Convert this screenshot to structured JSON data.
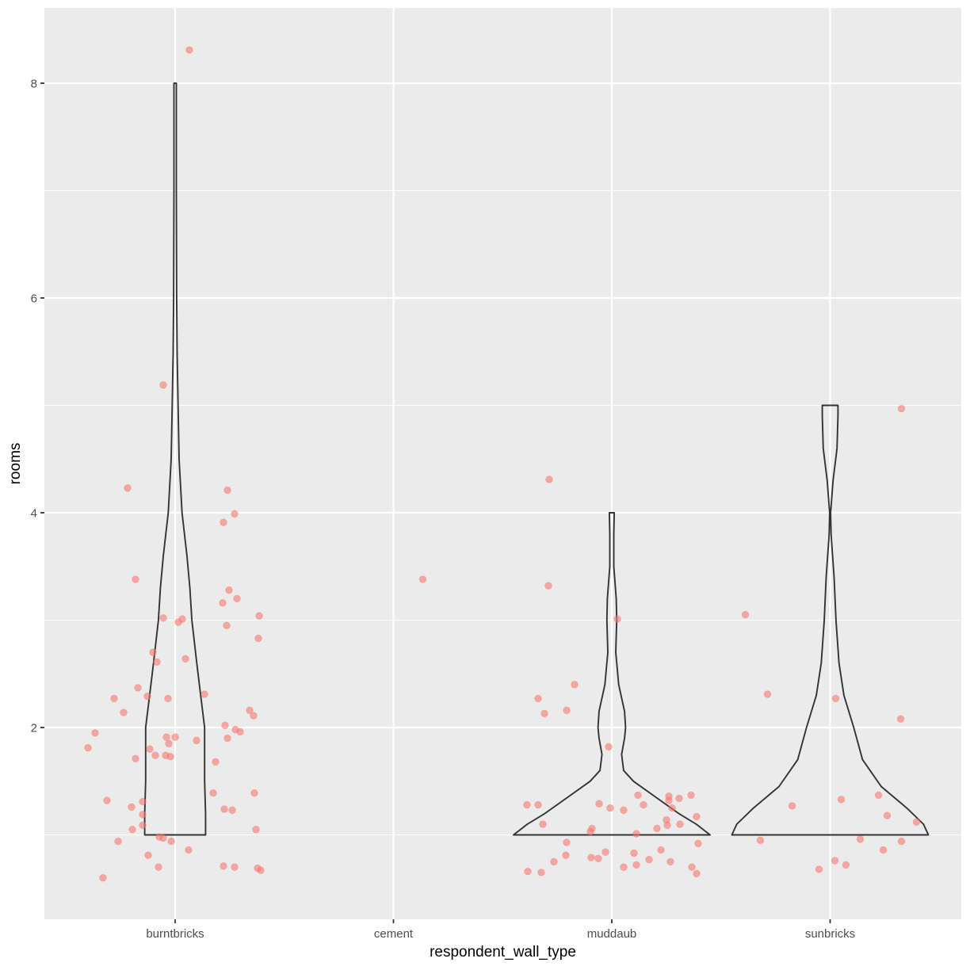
{
  "chart_data": {
    "type": "violin",
    "overlay": "jittered points",
    "title": "",
    "xlabel": "respondent_wall_type",
    "ylabel": "rooms",
    "categories": [
      "burntbricks",
      "cement",
      "muddaub",
      "sunbricks"
    ],
    "y_ticks": [
      2,
      4,
      6,
      8
    ],
    "ylim": [
      0.6,
      8.7
    ],
    "grid": true,
    "legend": "none",
    "colors": {
      "panel_bg": "#ebebeb",
      "grid_major": "#ffffff",
      "point_fill": "#F8766D",
      "point_alpha": 0.6,
      "violin_stroke": "#333333"
    },
    "violins": [
      {
        "category": "burntbricks",
        "min": 1,
        "max": 8,
        "profile": [
          [
            1,
            0.31
          ],
          [
            1.2,
            0.31
          ],
          [
            1.5,
            0.3
          ],
          [
            1.8,
            0.3
          ],
          [
            2.0,
            0.3
          ],
          [
            2.3,
            0.26
          ],
          [
            2.6,
            0.22
          ],
          [
            3.0,
            0.17
          ],
          [
            3.3,
            0.15
          ],
          [
            3.6,
            0.12
          ],
          [
            4.0,
            0.07
          ],
          [
            4.5,
            0.04
          ],
          [
            5.0,
            0.03
          ],
          [
            5.5,
            0.02
          ],
          [
            6.0,
            0.015
          ],
          [
            7.0,
            0.012
          ],
          [
            8.0,
            0.012
          ]
        ]
      },
      {
        "category": "muddaub",
        "min": 1,
        "max": 4,
        "profile": [
          [
            1,
            1.0
          ],
          [
            1.1,
            0.86
          ],
          [
            1.2,
            0.68
          ],
          [
            1.35,
            0.45
          ],
          [
            1.5,
            0.22
          ],
          [
            1.6,
            0.12
          ],
          [
            1.75,
            0.1
          ],
          [
            1.9,
            0.13
          ],
          [
            2.0,
            0.14
          ],
          [
            2.15,
            0.13
          ],
          [
            2.4,
            0.07
          ],
          [
            2.7,
            0.04
          ],
          [
            3.0,
            0.05
          ],
          [
            3.2,
            0.045
          ],
          [
            3.5,
            0.02
          ],
          [
            3.8,
            0.02
          ],
          [
            4.0,
            0.025
          ]
        ]
      },
      {
        "category": "sunbricks",
        "min": 1,
        "max": 5,
        "profile": [
          [
            1,
            1.0
          ],
          [
            1.1,
            0.95
          ],
          [
            1.25,
            0.78
          ],
          [
            1.45,
            0.52
          ],
          [
            1.7,
            0.33
          ],
          [
            2.0,
            0.24
          ],
          [
            2.3,
            0.14
          ],
          [
            2.6,
            0.09
          ],
          [
            3.0,
            0.06
          ],
          [
            3.4,
            0.04
          ],
          [
            3.8,
            0.01
          ],
          [
            4.0,
            0.0
          ],
          [
            4.3,
            0.03
          ],
          [
            4.6,
            0.07
          ],
          [
            4.9,
            0.08
          ],
          [
            5.0,
            0.08
          ]
        ]
      }
    ],
    "points": [
      {
        "category": "burntbricks",
        "dx": 18,
        "value": 8.31
      },
      {
        "category": "burntbricks",
        "dx": -15,
        "value": 5.19
      },
      {
        "category": "burntbricks",
        "dx": -60,
        "value": 4.23
      },
      {
        "category": "burntbricks",
        "dx": 66,
        "value": 4.21
      },
      {
        "category": "burntbricks",
        "dx": 75,
        "value": 3.99
      },
      {
        "category": "burntbricks",
        "dx": 61,
        "value": 3.91
      },
      {
        "category": "burntbricks",
        "dx": -50,
        "value": 3.38
      },
      {
        "category": "burntbricks",
        "dx": 68,
        "value": 3.28
      },
      {
        "category": "burntbricks",
        "dx": 78,
        "value": 3.2
      },
      {
        "category": "burntbricks",
        "dx": 60,
        "value": 3.16
      },
      {
        "category": "burntbricks",
        "dx": 106,
        "value": 3.04
      },
      {
        "category": "burntbricks",
        "dx": -15,
        "value": 3.02
      },
      {
        "category": "burntbricks",
        "dx": 9,
        "value": 3.01
      },
      {
        "category": "burntbricks",
        "dx": 4,
        "value": 2.98
      },
      {
        "category": "burntbricks",
        "dx": 65,
        "value": 2.95
      },
      {
        "category": "burntbricks",
        "dx": 105,
        "value": 2.83
      },
      {
        "category": "burntbricks",
        "dx": -28,
        "value": 2.7
      },
      {
        "category": "burntbricks",
        "dx": 13,
        "value": 2.64
      },
      {
        "category": "burntbricks",
        "dx": -23,
        "value": 2.61
      },
      {
        "category": "burntbricks",
        "dx": -47,
        "value": 2.37
      },
      {
        "category": "burntbricks",
        "dx": 37,
        "value": 2.31
      },
      {
        "category": "burntbricks",
        "dx": -35,
        "value": 2.29
      },
      {
        "category": "burntbricks",
        "dx": -77,
        "value": 2.27
      },
      {
        "category": "burntbricks",
        "dx": -9,
        "value": 2.27
      },
      {
        "category": "burntbricks",
        "dx": 94,
        "value": 2.16
      },
      {
        "category": "burntbricks",
        "dx": -65,
        "value": 2.14
      },
      {
        "category": "burntbricks",
        "dx": 99,
        "value": 2.11
      },
      {
        "category": "burntbricks",
        "dx": 63,
        "value": 2.02
      },
      {
        "category": "burntbricks",
        "dx": 76,
        "value": 1.98
      },
      {
        "category": "burntbricks",
        "dx": 82,
        "value": 1.96
      },
      {
        "category": "burntbricks",
        "dx": -101,
        "value": 1.95
      },
      {
        "category": "burntbricks",
        "dx": -11,
        "value": 1.91
      },
      {
        "category": "burntbricks",
        "dx": 0,
        "value": 1.91
      },
      {
        "category": "burntbricks",
        "dx": 66,
        "value": 1.9
      },
      {
        "category": "burntbricks",
        "dx": 27,
        "value": 1.88
      },
      {
        "category": "burntbricks",
        "dx": -8,
        "value": 1.85
      },
      {
        "category": "burntbricks",
        "dx": -110,
        "value": 1.81
      },
      {
        "category": "burntbricks",
        "dx": -32,
        "value": 1.8
      },
      {
        "category": "burntbricks",
        "dx": -25,
        "value": 1.74
      },
      {
        "category": "burntbricks",
        "dx": -12,
        "value": 1.74
      },
      {
        "category": "burntbricks",
        "dx": -6,
        "value": 1.73
      },
      {
        "category": "burntbricks",
        "dx": -50,
        "value": 1.71
      },
      {
        "category": "burntbricks",
        "dx": 51,
        "value": 1.68
      },
      {
        "category": "burntbricks",
        "dx": 48,
        "value": 1.39
      },
      {
        "category": "burntbricks",
        "dx": 100,
        "value": 1.39
      },
      {
        "category": "burntbricks",
        "dx": -86,
        "value": 1.32
      },
      {
        "category": "burntbricks",
        "dx": -41,
        "value": 1.31
      },
      {
        "category": "burntbricks",
        "dx": -55,
        "value": 1.26
      },
      {
        "category": "burntbricks",
        "dx": 62,
        "value": 1.24
      },
      {
        "category": "burntbricks",
        "dx": 72,
        "value": 1.23
      },
      {
        "category": "burntbricks",
        "dx": -41,
        "value": 1.19
      },
      {
        "category": "burntbricks",
        "dx": -41,
        "value": 1.09
      },
      {
        "category": "burntbricks",
        "dx": -54,
        "value": 1.05
      },
      {
        "category": "burntbricks",
        "dx": 102,
        "value": 1.05
      },
      {
        "category": "burntbricks",
        "dx": -20,
        "value": 0.98
      },
      {
        "category": "burntbricks",
        "dx": -15,
        "value": 0.97
      },
      {
        "category": "burntbricks",
        "dx": -72,
        "value": 0.94
      },
      {
        "category": "burntbricks",
        "dx": -5,
        "value": 0.94
      },
      {
        "category": "burntbricks",
        "dx": 17,
        "value": 0.86
      },
      {
        "category": "burntbricks",
        "dx": -34,
        "value": 0.81
      },
      {
        "category": "burntbricks",
        "dx": 61,
        "value": 0.71
      },
      {
        "category": "burntbricks",
        "dx": -21,
        "value": 0.7
      },
      {
        "category": "burntbricks",
        "dx": 75,
        "value": 0.7
      },
      {
        "category": "burntbricks",
        "dx": 104,
        "value": 0.69
      },
      {
        "category": "burntbricks",
        "dx": 108,
        "value": 0.67
      },
      {
        "category": "burntbricks",
        "dx": -91,
        "value": 0.6
      },
      {
        "category": "cement",
        "dx": 37,
        "value": 3.38
      },
      {
        "category": "muddaub",
        "dx": -79,
        "value": 4.31
      },
      {
        "category": "muddaub",
        "dx": -80,
        "value": 3.32
      },
      {
        "category": "muddaub",
        "dx": 7,
        "value": 3.01
      },
      {
        "category": "muddaub",
        "dx": -47,
        "value": 2.4
      },
      {
        "category": "muddaub",
        "dx": -93,
        "value": 2.27
      },
      {
        "category": "muddaub",
        "dx": -57,
        "value": 2.16
      },
      {
        "category": "muddaub",
        "dx": -85,
        "value": 2.13
      },
      {
        "category": "muddaub",
        "dx": -4,
        "value": 1.82
      },
      {
        "category": "muddaub",
        "dx": 72,
        "value": 1.36
      },
      {
        "category": "muddaub",
        "dx": 33,
        "value": 1.37
      },
      {
        "category": "muddaub",
        "dx": 100,
        "value": 1.37
      },
      {
        "category": "muddaub",
        "dx": 85,
        "value": 1.34
      },
      {
        "category": "muddaub",
        "dx": 72,
        "value": 1.32
      },
      {
        "category": "muddaub",
        "dx": -93,
        "value": 1.28
      },
      {
        "category": "muddaub",
        "dx": -107,
        "value": 1.28
      },
      {
        "category": "muddaub",
        "dx": -16,
        "value": 1.29
      },
      {
        "category": "muddaub",
        "dx": 40,
        "value": 1.28
      },
      {
        "category": "muddaub",
        "dx": 76,
        "value": 1.25
      },
      {
        "category": "muddaub",
        "dx": -2,
        "value": 1.25
      },
      {
        "category": "muddaub",
        "dx": 15,
        "value": 1.23
      },
      {
        "category": "muddaub",
        "dx": 107,
        "value": 1.17
      },
      {
        "category": "muddaub",
        "dx": 69,
        "value": 1.14
      },
      {
        "category": "muddaub",
        "dx": -87,
        "value": 1.1
      },
      {
        "category": "muddaub",
        "dx": 86,
        "value": 1.1
      },
      {
        "category": "muddaub",
        "dx": 70,
        "value": 1.09
      },
      {
        "category": "muddaub",
        "dx": 57,
        "value": 1.06
      },
      {
        "category": "muddaub",
        "dx": -25,
        "value": 1.06
      },
      {
        "category": "muddaub",
        "dx": -27,
        "value": 1.03
      },
      {
        "category": "muddaub",
        "dx": 31,
        "value": 1.01
      },
      {
        "category": "muddaub",
        "dx": -57,
        "value": 0.93
      },
      {
        "category": "muddaub",
        "dx": 109,
        "value": 0.92
      },
      {
        "category": "muddaub",
        "dx": 62,
        "value": 0.86
      },
      {
        "category": "muddaub",
        "dx": -8,
        "value": 0.84
      },
      {
        "category": "muddaub",
        "dx": 28,
        "value": 0.83
      },
      {
        "category": "muddaub",
        "dx": -58,
        "value": 0.81
      },
      {
        "category": "muddaub",
        "dx": -26,
        "value": 0.79
      },
      {
        "category": "muddaub",
        "dx": -17,
        "value": 0.78
      },
      {
        "category": "muddaub",
        "dx": 47,
        "value": 0.77
      },
      {
        "category": "muddaub",
        "dx": -73,
        "value": 0.75
      },
      {
        "category": "muddaub",
        "dx": 74,
        "value": 0.75
      },
      {
        "category": "muddaub",
        "dx": 31,
        "value": 0.72
      },
      {
        "category": "muddaub",
        "dx": 15,
        "value": 0.7
      },
      {
        "category": "muddaub",
        "dx": 101,
        "value": 0.7
      },
      {
        "category": "muddaub",
        "dx": -106,
        "value": 0.66
      },
      {
        "category": "muddaub",
        "dx": -89,
        "value": 0.65
      },
      {
        "category": "muddaub",
        "dx": 107,
        "value": 0.64
      },
      {
        "category": "sunbricks",
        "dx": 90,
        "value": 4.97
      },
      {
        "category": "sunbricks",
        "dx": -107,
        "value": 3.05
      },
      {
        "category": "sunbricks",
        "dx": -79,
        "value": 2.31
      },
      {
        "category": "sunbricks",
        "dx": 7,
        "value": 2.27
      },
      {
        "category": "sunbricks",
        "dx": 89,
        "value": 2.08
      },
      {
        "category": "sunbricks",
        "dx": 61,
        "value": 1.37
      },
      {
        "category": "sunbricks",
        "dx": 14,
        "value": 1.33
      },
      {
        "category": "sunbricks",
        "dx": -48,
        "value": 1.27
      },
      {
        "category": "sunbricks",
        "dx": 72,
        "value": 1.18
      },
      {
        "category": "sunbricks",
        "dx": 109,
        "value": 1.12
      },
      {
        "category": "sunbricks",
        "dx": -88,
        "value": 0.95
      },
      {
        "category": "sunbricks",
        "dx": 38,
        "value": 0.96
      },
      {
        "category": "sunbricks",
        "dx": 90,
        "value": 0.94
      },
      {
        "category": "sunbricks",
        "dx": 67,
        "value": 0.86
      },
      {
        "category": "sunbricks",
        "dx": 6,
        "value": 0.76
      },
      {
        "category": "sunbricks",
        "dx": 20,
        "value": 0.72
      },
      {
        "category": "sunbricks",
        "dx": -14,
        "value": 0.68
      }
    ]
  }
}
